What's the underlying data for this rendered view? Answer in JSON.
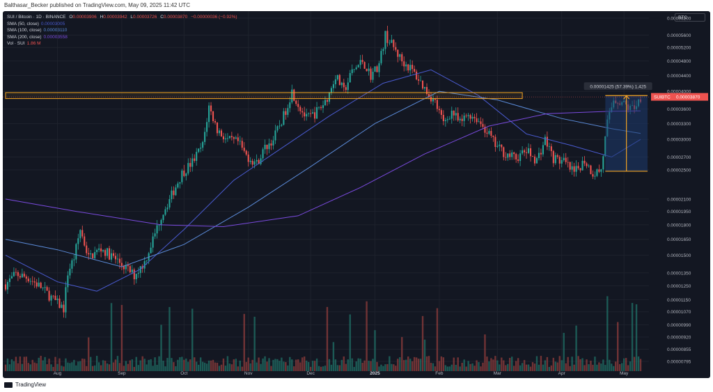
{
  "header": {
    "published": "Balthasar_Becker published on TradingView.com, May 09, 2025 11:42 UTC"
  },
  "footer": {
    "brand": "TradingView"
  },
  "legend": {
    "symbol": "SUI / Bitcoin · 1D · BINANCE",
    "ohlc": [
      {
        "k": "O",
        "v": "0.00003906"
      },
      {
        "k": "H",
        "v": "0.00003942"
      },
      {
        "k": "L",
        "v": "0.00003726"
      },
      {
        "k": "C",
        "v": "0.00003870"
      }
    ],
    "change": "−0.00000036 (−0.92%)",
    "sma50": {
      "label": "SMA (50, close)",
      "value": "0.00003005"
    },
    "sma100": {
      "label": "SMA (100, close)",
      "value": "0.00003110"
    },
    "sma200": {
      "label": "SMA (200, close)",
      "value": "0.00003558"
    },
    "vol": {
      "label": "Vol · SUI",
      "value": "1.86 M"
    }
  },
  "currency_tag": "BTC",
  "price_tag": {
    "symbol": "SUIBTC",
    "value": "0.00003870"
  },
  "measure_label": "0.00001425 (57.39%) 1,425",
  "colors": {
    "bg": "#131722",
    "up": "#26a69a",
    "down": "#ef5350",
    "up_vol": "#1f6b63",
    "down_vol": "#8a3b3b",
    "sma50": "#4a5bd1",
    "sma100": "#5b8bd9",
    "sma200": "#7b4be0",
    "zone": "#f5a623",
    "measure_fill": "#1e3a6e"
  },
  "chart_data": {
    "type": "candlestick",
    "scale": "log",
    "y_ticks": [
      "0.00006200",
      "0.00005600",
      "0.00005200",
      "0.00004800",
      "0.00004400",
      "0.00004000",
      "0.00003600",
      "0.00003300",
      "0.00003000",
      "0.00002700",
      "0.00002500",
      "0.00002100",
      "0.00001950",
      "0.00001800",
      "0.00001650",
      "0.00001500",
      "0.00001350",
      "0.00001250",
      "0.00001150",
      "0.00001070",
      "0.00000990",
      "0.00000920",
      "0.00000855",
      "0.00000795"
    ],
    "x_ticks": [
      {
        "label": "Aug",
        "date": "2024-08-01"
      },
      {
        "label": "Sep",
        "date": "2024-09-01"
      },
      {
        "label": "Oct",
        "date": "2024-10-01"
      },
      {
        "label": "Nov",
        "date": "2024-11-01"
      },
      {
        "label": "Dec",
        "date": "2024-12-01"
      },
      {
        "label": "2025",
        "date": "2025-01-01"
      },
      {
        "label": "Feb",
        "date": "2025-02-01"
      },
      {
        "label": "Mar",
        "date": "2025-03-01"
      },
      {
        "label": "Apr",
        "date": "2025-04-01"
      },
      {
        "label": "May",
        "date": "2025-05-01"
      }
    ],
    "start_date": "2024-07-07",
    "end_date": "2025-05-09",
    "close_path": [
      [
        "2024-07-07",
        1.26e-05
      ],
      [
        "2024-07-12",
        1.34e-05
      ],
      [
        "2024-07-18",
        1.31e-05
      ],
      [
        "2024-07-24",
        1.24e-05
      ],
      [
        "2024-07-30",
        1.15e-05
      ],
      [
        "2024-08-04",
        1.09e-05
      ],
      [
        "2024-08-06",
        1.35e-05
      ],
      [
        "2024-08-09",
        1.48e-05
      ],
      [
        "2024-08-12",
        1.75e-05
      ],
      [
        "2024-08-16",
        1.48e-05
      ],
      [
        "2024-08-22",
        1.56e-05
      ],
      [
        "2024-08-28",
        1.48e-05
      ],
      [
        "2024-09-03",
        1.39e-05
      ],
      [
        "2024-09-07",
        1.33e-05
      ],
      [
        "2024-09-12",
        1.44e-05
      ],
      [
        "2024-09-16",
        1.65e-05
      ],
      [
        "2024-09-20",
        1.9e-05
      ],
      [
        "2024-09-25",
        2.15e-05
      ],
      [
        "2024-09-30",
        2.45e-05
      ],
      [
        "2024-10-05",
        2.62e-05
      ],
      [
        "2024-10-10",
        2.9e-05
      ],
      [
        "2024-10-13",
        3.65e-05
      ],
      [
        "2024-10-17",
        3.18e-05
      ],
      [
        "2024-10-22",
        2.98e-05
      ],
      [
        "2024-10-27",
        2.95e-05
      ],
      [
        "2024-10-31",
        2.72e-05
      ],
      [
        "2024-11-05",
        2.6e-05
      ],
      [
        "2024-11-09",
        2.85e-05
      ],
      [
        "2024-11-13",
        3e-05
      ],
      [
        "2024-11-18",
        3.45e-05
      ],
      [
        "2024-11-22",
        4e-05
      ],
      [
        "2024-11-25",
        3.7e-05
      ],
      [
        "2024-11-29",
        3.4e-05
      ],
      [
        "2024-12-03",
        3.5e-05
      ],
      [
        "2024-12-07",
        3.7e-05
      ],
      [
        "2024-12-10",
        3.95e-05
      ],
      [
        "2024-12-13",
        4.4e-05
      ],
      [
        "2024-12-17",
        4e-05
      ],
      [
        "2024-12-21",
        4.5e-05
      ],
      [
        "2024-12-26",
        4.8e-05
      ],
      [
        "2024-12-30",
        4.4e-05
      ],
      [
        "2025-01-03",
        4.7e-05
      ],
      [
        "2025-01-06",
        5.6e-05
      ],
      [
        "2025-01-10",
        5.2e-05
      ],
      [
        "2025-01-14",
        4.8e-05
      ],
      [
        "2025-01-18",
        4.6e-05
      ],
      [
        "2025-01-22",
        4.3e-05
      ],
      [
        "2025-01-26",
        4e-05
      ],
      [
        "2025-01-30",
        3.75e-05
      ],
      [
        "2025-02-03",
        3.3e-05
      ],
      [
        "2025-02-07",
        3.55e-05
      ],
      [
        "2025-02-11",
        3.3e-05
      ],
      [
        "2025-02-15",
        3.5e-05
      ],
      [
        "2025-02-19",
        3.4e-05
      ],
      [
        "2025-02-24",
        3.15e-05
      ],
      [
        "2025-02-28",
        2.9e-05
      ],
      [
        "2025-03-05",
        2.75e-05
      ],
      [
        "2025-03-10",
        2.68e-05
      ],
      [
        "2025-03-15",
        2.8e-05
      ],
      [
        "2025-03-20",
        2.65e-05
      ],
      [
        "2025-03-24",
        3e-05
      ],
      [
        "2025-03-28",
        2.68e-05
      ],
      [
        "2025-04-02",
        2.62e-05
      ],
      [
        "2025-04-07",
        2.45e-05
      ],
      [
        "2025-04-12",
        2.65e-05
      ],
      [
        "2025-04-16",
        2.45e-05
      ],
      [
        "2025-04-20",
        2.5e-05
      ],
      [
        "2025-04-23",
        3.3e-05
      ],
      [
        "2025-04-26",
        3.82e-05
      ],
      [
        "2025-04-30",
        3.75e-05
      ],
      [
        "2025-05-04",
        3.6e-05
      ],
      [
        "2025-05-07",
        3.7e-05
      ],
      [
        "2025-05-09",
        3.87e-05
      ]
    ],
    "sma50_path": [
      [
        "2024-07-07",
        1.5e-05
      ],
      [
        "2024-08-01",
        1.28e-05
      ],
      [
        "2024-08-20",
        1.21e-05
      ],
      [
        "2024-09-10",
        1.38e-05
      ],
      [
        "2024-10-01",
        1.75e-05
      ],
      [
        "2024-10-25",
        2.35e-05
      ],
      [
        "2024-11-15",
        2.8e-05
      ],
      [
        "2024-12-10",
        3.45e-05
      ],
      [
        "2025-01-05",
        4.2e-05
      ],
      [
        "2025-01-28",
        4.55e-05
      ],
      [
        "2025-02-20",
        3.9e-05
      ],
      [
        "2025-03-15",
        3.1e-05
      ],
      [
        "2025-04-05",
        2.9e-05
      ],
      [
        "2025-04-25",
        2.7e-05
      ],
      [
        "2025-05-09",
        3e-05
      ]
    ],
    "sma100_path": [
      [
        "2024-07-07",
        1.65e-05
      ],
      [
        "2024-08-01",
        1.55e-05
      ],
      [
        "2024-09-01",
        1.4e-05
      ],
      [
        "2024-10-01",
        1.6e-05
      ],
      [
        "2024-11-01",
        2e-05
      ],
      [
        "2024-12-01",
        2.55e-05
      ],
      [
        "2025-01-01",
        3.3e-05
      ],
      [
        "2025-02-01",
        4e-05
      ],
      [
        "2025-03-01",
        3.8e-05
      ],
      [
        "2025-04-01",
        3.4e-05
      ],
      [
        "2025-04-25",
        3.2e-05
      ],
      [
        "2025-05-09",
        3.11e-05
      ]
    ],
    "sma200_path": [
      [
        "2024-07-07",
        2.1e-05
      ],
      [
        "2024-08-10",
        1.95e-05
      ],
      [
        "2024-09-20",
        1.8e-05
      ],
      [
        "2024-10-20",
        1.78e-05
      ],
      [
        "2024-11-25",
        1.9e-05
      ],
      [
        "2024-12-25",
        2.25e-05
      ],
      [
        "2025-01-25",
        2.75e-05
      ],
      [
        "2025-02-25",
        3.25e-05
      ],
      [
        "2025-03-25",
        3.5e-05
      ],
      [
        "2025-04-25",
        3.55e-05
      ],
      [
        "2025-05-09",
        3.56e-05
      ]
    ],
    "resistance_zone": {
      "from": "2024-07-07",
      "to": "2025-03-13",
      "low": 3.83e-05,
      "high": 3.97e-05
    },
    "measure": {
      "from_date": "2025-04-22",
      "to_date": "2025-05-09",
      "from_price": 2.48e-05,
      "to_price": 3.9e-05
    }
  }
}
